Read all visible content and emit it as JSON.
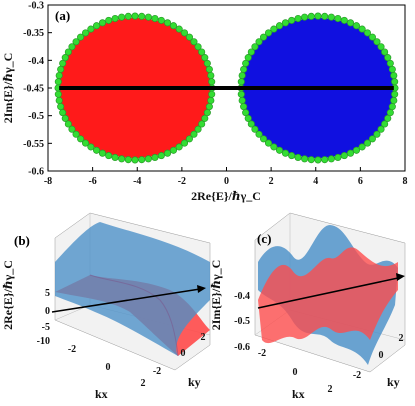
{
  "panels": {
    "a": {
      "label": "(a)"
    },
    "b": {
      "label": "(b)"
    },
    "c": {
      "label": "(c)"
    }
  },
  "colors": {
    "red": "#ff1a1a",
    "blue": "#1010e0",
    "ring": "#33dd33",
    "line": "#000000",
    "surf_blue": "#4a90c8",
    "surf_red": "#ff4a4a"
  },
  "chart_data": [
    {
      "panel": "a",
      "type": "scatter",
      "xlabel": "2Re{E}/ℏγ_C",
      "ylabel": "2Im{E}/ℏγ_C",
      "xlim": [
        -8,
        8
      ],
      "ylim": [
        -0.6,
        -0.3
      ],
      "xticks": [
        -8,
        -6,
        -4,
        -2,
        0,
        2,
        4,
        6,
        8
      ],
      "xtick_labels": [
        "-8",
        "-6",
        "-4",
        "-2",
        "0",
        "2",
        "4",
        "6",
        "8"
      ],
      "yticks": [
        -0.3,
        -0.35,
        -0.4,
        -0.45,
        -0.5,
        -0.55,
        -0.6
      ],
      "ytick_labels": [
        "-0.3",
        "-0.35",
        "-0.4",
        "-0.45",
        "-0.5",
        "-0.55",
        "-0.6"
      ],
      "grid": false,
      "series": [
        {
          "shape": "filled-ellipse",
          "color": "red",
          "center": [
            -4.1,
            -0.45
          ],
          "radii": [
            3.4,
            0.127
          ]
        },
        {
          "shape": "filled-ellipse",
          "color": "blue",
          "center": [
            4.1,
            -0.45
          ],
          "radii": [
            3.4,
            0.127
          ]
        },
        {
          "shape": "ring-markers",
          "color": "ring",
          "centers": [
            [
              -4.1,
              -0.45
            ],
            [
              4.1,
              -0.45
            ]
          ],
          "radii": [
            3.45,
            0.13
          ],
          "points_per_ring": 72
        },
        {
          "shape": "line",
          "color": "line",
          "x": [
            -7.5,
            7.5
          ],
          "y": [
            -0.45,
            -0.45
          ]
        }
      ]
    },
    {
      "panel": "b",
      "type": "surface",
      "xlabel": "kx",
      "ylabel": "ky",
      "zlabel": "2Re{E}/ℏγ_C",
      "xticks": [
        -2,
        0,
        2
      ],
      "xtick_labels": [
        "-2",
        "0",
        "2"
      ],
      "yticks": [
        -2,
        0,
        2
      ],
      "ytick_labels": [
        "-2",
        "0",
        "2"
      ],
      "zticks": [
        5,
        0,
        -5,
        -10
      ],
      "ztick_labels": [
        "5",
        "0",
        "-5",
        "-10"
      ],
      "surfaces": [
        "surf_blue",
        "surf_red"
      ]
    },
    {
      "panel": "c",
      "type": "surface",
      "xlabel": "kx",
      "ylabel": "ky",
      "zlabel": "2Im{E}/ℏγ_C",
      "xticks": [
        -2,
        0,
        2
      ],
      "xtick_labels": [
        "-2",
        "0",
        "2"
      ],
      "yticks": [
        -2,
        0,
        2
      ],
      "ytick_labels": [
        "-2",
        "0",
        "2"
      ],
      "zticks": [
        -0.4,
        -0.5,
        -0.6
      ],
      "ztick_labels": [
        "-0.4",
        "-0.5",
        "-0.6"
      ],
      "surfaces": [
        "surf_blue",
        "surf_red"
      ]
    }
  ]
}
